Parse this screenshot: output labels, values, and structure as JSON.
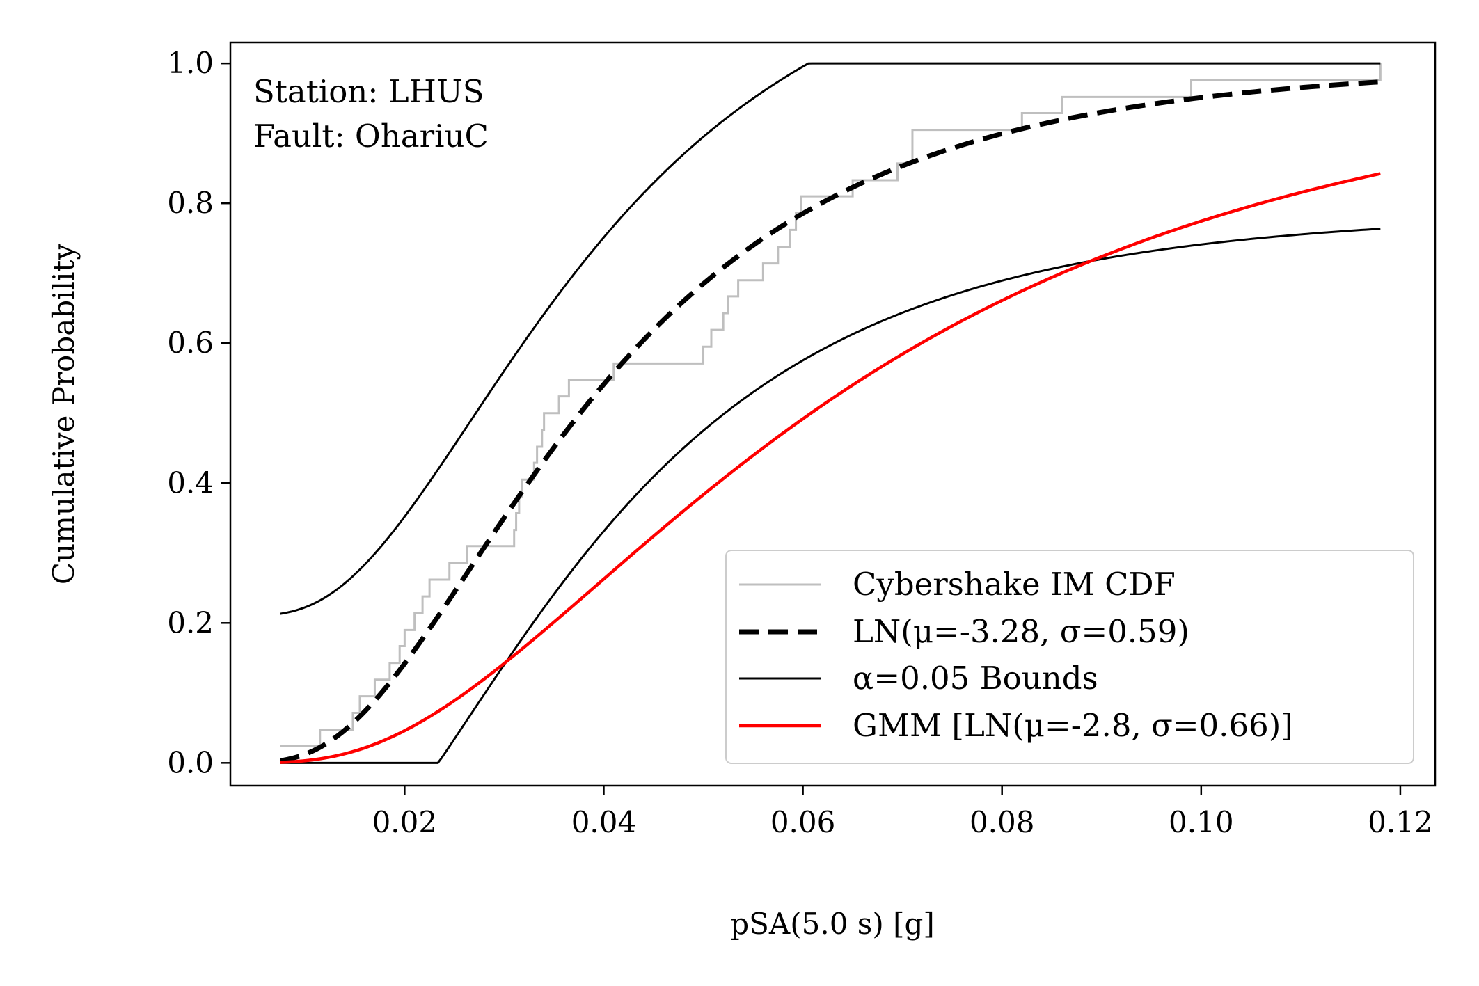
{
  "chart_data": {
    "type": "line",
    "xlabel": "pSA(5.0 s) [g]",
    "ylabel": "Cumulative Probability",
    "xlim": [
      0.0025,
      0.1235
    ],
    "ylim": [
      -0.0325,
      1.03
    ],
    "xticks": [
      {
        "value": 0.02,
        "label": "0.02"
      },
      {
        "value": 0.04,
        "label": "0.04"
      },
      {
        "value": 0.06,
        "label": "0.06"
      },
      {
        "value": 0.08,
        "label": "0.08"
      },
      {
        "value": 0.1,
        "label": "0.10"
      },
      {
        "value": 0.12,
        "label": "0.12"
      }
    ],
    "yticks": [
      {
        "value": 0.0,
        "label": "0.0"
      },
      {
        "value": 0.2,
        "label": "0.2"
      },
      {
        "value": 0.4,
        "label": "0.4"
      },
      {
        "value": 0.6,
        "label": "0.6"
      },
      {
        "value": 0.8,
        "label": "0.8"
      },
      {
        "value": 1.0,
        "label": "1.0"
      }
    ],
    "grid": false,
    "annotations": [
      "Station: LHUS",
      "Fault: OhariuC"
    ],
    "legend_placement": "lower-right",
    "x_range": [
      0.0075,
      0.118
    ],
    "series": [
      {
        "name": "Cybershake IM CDF",
        "style": "step",
        "color": "#bfbfbf",
        "points": [
          [
            0.0075,
            0.0238
          ],
          [
            0.0115,
            0.0238
          ],
          [
            0.0115,
            0.0476
          ],
          [
            0.0148,
            0.0476
          ],
          [
            0.0148,
            0.0714
          ],
          [
            0.0155,
            0.0714
          ],
          [
            0.0155,
            0.0952
          ],
          [
            0.017,
            0.0952
          ],
          [
            0.017,
            0.119
          ],
          [
            0.0185,
            0.119
          ],
          [
            0.0185,
            0.143
          ],
          [
            0.0195,
            0.143
          ],
          [
            0.0195,
            0.167
          ],
          [
            0.02,
            0.167
          ],
          [
            0.02,
            0.19
          ],
          [
            0.021,
            0.19
          ],
          [
            0.021,
            0.214
          ],
          [
            0.0218,
            0.214
          ],
          [
            0.0218,
            0.238
          ],
          [
            0.0225,
            0.238
          ],
          [
            0.0225,
            0.262
          ],
          [
            0.0245,
            0.262
          ],
          [
            0.0245,
            0.286
          ],
          [
            0.0263,
            0.286
          ],
          [
            0.0263,
            0.31
          ],
          [
            0.031,
            0.31
          ],
          [
            0.031,
            0.333
          ],
          [
            0.0312,
            0.333
          ],
          [
            0.0312,
            0.357
          ],
          [
            0.0315,
            0.357
          ],
          [
            0.0315,
            0.381
          ],
          [
            0.0318,
            0.381
          ],
          [
            0.0318,
            0.405
          ],
          [
            0.033,
            0.405
          ],
          [
            0.033,
            0.429
          ],
          [
            0.0333,
            0.429
          ],
          [
            0.0333,
            0.452
          ],
          [
            0.0338,
            0.452
          ],
          [
            0.0338,
            0.476
          ],
          [
            0.034,
            0.476
          ],
          [
            0.034,
            0.5
          ],
          [
            0.0355,
            0.5
          ],
          [
            0.0355,
            0.524
          ],
          [
            0.0365,
            0.524
          ],
          [
            0.0365,
            0.548
          ],
          [
            0.041,
            0.548
          ],
          [
            0.041,
            0.571
          ],
          [
            0.05,
            0.571
          ],
          [
            0.05,
            0.595
          ],
          [
            0.0508,
            0.595
          ],
          [
            0.0508,
            0.619
          ],
          [
            0.052,
            0.619
          ],
          [
            0.052,
            0.643
          ],
          [
            0.0525,
            0.643
          ],
          [
            0.0525,
            0.667
          ],
          [
            0.0535,
            0.667
          ],
          [
            0.0535,
            0.69
          ],
          [
            0.056,
            0.69
          ],
          [
            0.056,
            0.714
          ],
          [
            0.0575,
            0.714
          ],
          [
            0.0575,
            0.738
          ],
          [
            0.0587,
            0.738
          ],
          [
            0.0587,
            0.762
          ],
          [
            0.0593,
            0.762
          ],
          [
            0.0593,
            0.786
          ],
          [
            0.0598,
            0.786
          ],
          [
            0.0598,
            0.81
          ],
          [
            0.065,
            0.81
          ],
          [
            0.065,
            0.833
          ],
          [
            0.0695,
            0.833
          ],
          [
            0.0695,
            0.857
          ],
          [
            0.071,
            0.857
          ],
          [
            0.071,
            0.905
          ],
          [
            0.082,
            0.905
          ],
          [
            0.082,
            0.929
          ],
          [
            0.086,
            0.929
          ],
          [
            0.086,
            0.952
          ],
          [
            0.099,
            0.952
          ],
          [
            0.099,
            0.976
          ],
          [
            0.118,
            0.976
          ],
          [
            0.118,
            1.0
          ]
        ]
      },
      {
        "name": "LN(μ=-3.28, σ=0.59)",
        "style": "dashed",
        "color": "#000000",
        "distribution": {
          "family": "lognormal",
          "mu": -3.28,
          "sigma": 0.59
        }
      },
      {
        "name": "α=0.05 Bounds",
        "style": "thin",
        "color": "#000000",
        "distribution": {
          "family": "lognormal",
          "mu": -3.28,
          "sigma": 0.59,
          "band": 0.21
        }
      },
      {
        "name": "GMM [LN(μ=-2.8, σ=0.66)]",
        "style": "solid",
        "color": "#ff0000",
        "distribution": {
          "family": "lognormal",
          "mu": -2.8,
          "sigma": 0.66
        }
      }
    ]
  }
}
